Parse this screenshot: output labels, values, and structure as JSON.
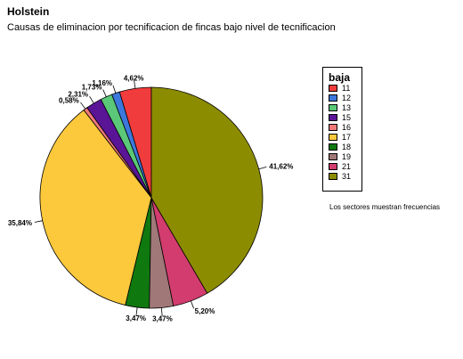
{
  "title": "Holstein",
  "subtitle": "Causas de eliminacion por tecnificacion de fincas bajo nivel de  tecnificacion",
  "note": "Los sectores muestran frecuencias",
  "chart_data": {
    "type": "pie",
    "legend_title": "baja",
    "legend_position": "right",
    "categories": [
      "11",
      "12",
      "13",
      "15",
      "16",
      "17",
      "18",
      "19",
      "21",
      "31"
    ],
    "values": [
      4.62,
      1.16,
      1.73,
      2.31,
      0.58,
      35.84,
      3.47,
      3.47,
      5.2,
      41.62
    ],
    "labels": [
      "4,62%",
      "1,16%",
      "1,73%",
      "2,31%",
      "0,58%",
      "35,84%",
      "3,47%",
      "3,47%",
      "5,20%",
      "41,62%"
    ],
    "colors": [
      "#f03c3c",
      "#3c78dc",
      "#5ac878",
      "#5a1496",
      "#f07878",
      "#fcc83c",
      "#0f780f",
      "#a07878",
      "#d23c6e",
      "#8c8c00"
    ]
  }
}
